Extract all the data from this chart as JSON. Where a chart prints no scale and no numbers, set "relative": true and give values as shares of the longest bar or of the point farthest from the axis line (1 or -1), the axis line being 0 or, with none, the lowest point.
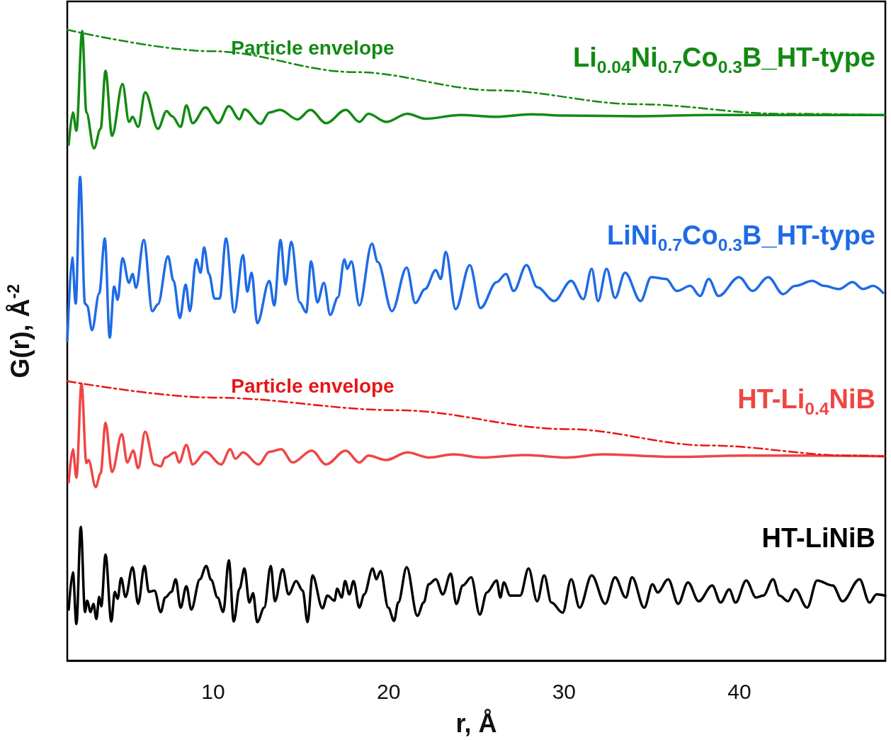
{
  "chart_data": {
    "type": "line",
    "relative": true,
    "xlabel": "r, Å",
    "ylabel": "G(r), Å$^{-2}$",
    "xlim": [
      1.68,
      48.32
    ],
    "xticks": [
      10,
      20,
      30,
      40
    ],
    "grid": false,
    "legend": false,
    "marker": "none",
    "annotations": [
      "Particle envelope",
      "Particle envelope"
    ],
    "series": [
      {
        "name": "Li$_{0.04}$Ni$_{0.7}$Co$_{0.3}$B_HT-type",
        "color": "#138a13",
        "x": [
          1.76,
          2.0,
          2.2,
          2.53,
          2.77,
          3.2,
          3.58,
          3.86,
          4.23,
          4.83,
          5.2,
          5.4,
          5.72,
          6.12,
          6.85,
          7.34,
          7.66,
          8.14,
          8.47,
          8.83,
          9.56,
          10.29,
          10.89,
          11.5,
          11.78,
          12.71,
          13.2,
          13.8,
          14.81,
          15.54,
          16.43,
          17.56,
          18.33,
          18.85,
          19.86,
          21.07,
          22.08,
          24.1,
          26.12,
          28.14,
          30.16,
          34.2,
          38.25,
          42.29,
          48.27
        ],
        "values": [
          0.818,
          0.869,
          0.84,
          0.998,
          0.869,
          0.812,
          0.843,
          0.935,
          0.832,
          0.914,
          0.854,
          0.862,
          0.846,
          0.901,
          0.843,
          0.871,
          0.863,
          0.846,
          0.88,
          0.852,
          0.877,
          0.852,
          0.879,
          0.858,
          0.874,
          0.851,
          0.869,
          0.873,
          0.858,
          0.873,
          0.852,
          0.873,
          0.854,
          0.867,
          0.854,
          0.867,
          0.859,
          0.865,
          0.862,
          0.866,
          0.864,
          0.863,
          0.865,
          0.865,
          0.865
        ]
      },
      {
        "color": "#138a13",
        "line_style": "dashed",
        "x": [
          1.68,
          9.96,
          18.04,
          26.12,
          34.2,
          42.29,
          48.27
        ],
        "values": [
          1.0,
          0.966,
          0.933,
          0.904,
          0.882,
          0.867,
          0.865
        ]
      },
      {
        "name": "LiNi$_{0.7}$Co$_{0.3}$B_HT-type",
        "color": "#1f6be6",
        "x": [
          1.68,
          1.96,
          2.16,
          2.41,
          2.69,
          2.81,
          3.09,
          3.5,
          3.82,
          4.1,
          4.35,
          4.55,
          4.83,
          5.2,
          5.4,
          5.6,
          6.04,
          6.53,
          6.85,
          7.42,
          7.74,
          8.1,
          8.43,
          8.67,
          9.03,
          9.28,
          9.48,
          9.76,
          10.08,
          10.37,
          10.73,
          11.2,
          11.7,
          11.94,
          12.19,
          12.51,
          13.2,
          13.48,
          13.84,
          14.12,
          14.45,
          14.93,
          15.3,
          15.58,
          15.94,
          16.31,
          16.67,
          17.11,
          17.48,
          17.64,
          17.88,
          18.33,
          19.05,
          19.38,
          20.19,
          21.03,
          21.52,
          22.08,
          22.69,
          22.97,
          23.26,
          23.82,
          24.63,
          25.24,
          26.16,
          26.69,
          27.13,
          27.86,
          28.47,
          29.44,
          30.41,
          31.1,
          31.58,
          31.94,
          32.43,
          32.91,
          33.48,
          34.37,
          34.97,
          35.82,
          36.43,
          37.2,
          37.76,
          38.25,
          38.81,
          39.98,
          40.75,
          41.64,
          42.49,
          43.18,
          44.15,
          44.83,
          45.68,
          46.45,
          47.05,
          47.62,
          48.19
        ],
        "values": [
          0.507,
          0.639,
          0.566,
          0.767,
          0.566,
          0.563,
          0.524,
          0.582,
          0.669,
          0.512,
          0.593,
          0.572,
          0.638,
          0.599,
          0.613,
          0.591,
          0.667,
          0.554,
          0.565,
          0.641,
          0.602,
          0.543,
          0.596,
          0.554,
          0.636,
          0.615,
          0.655,
          0.613,
          0.574,
          0.574,
          0.669,
          0.552,
          0.643,
          0.585,
          0.615,
          0.535,
          0.602,
          0.563,
          0.667,
          0.596,
          0.664,
          0.568,
          0.552,
          0.633,
          0.568,
          0.599,
          0.548,
          0.576,
          0.636,
          0.621,
          0.633,
          0.563,
          0.661,
          0.632,
          0.554,
          0.623,
          0.567,
          0.589,
          0.619,
          0.605,
          0.648,
          0.557,
          0.627,
          0.559,
          0.6,
          0.613,
          0.586,
          0.627,
          0.592,
          0.57,
          0.602,
          0.573,
          0.621,
          0.57,
          0.621,
          0.575,
          0.615,
          0.57,
          0.608,
          0.605,
          0.586,
          0.594,
          0.578,
          0.605,
          0.578,
          0.608,
          0.586,
          0.608,
          0.581,
          0.594,
          0.602,
          0.594,
          0.589,
          0.6,
          0.589,
          0.594,
          0.583
        ]
      },
      {
        "name": "HT-Li$_{0.4}$NiB",
        "color": "#f04545",
        "x": [
          1.76,
          2.0,
          2.2,
          2.49,
          2.77,
          2.89,
          3.3,
          3.58,
          3.86,
          4.23,
          4.79,
          5.1,
          5.44,
          5.72,
          6.12,
          6.65,
          7.01,
          7.26,
          7.82,
          8.06,
          8.47,
          8.83,
          9.56,
          10.45,
          10.97,
          11.26,
          11.7,
          12.59,
          13.2,
          13.88,
          14.53,
          15.62,
          16.43,
          17.56,
          18.33,
          18.85,
          19.86,
          21.07,
          22.29,
          23.7,
          25.32,
          27.74,
          30.16,
          32.19,
          36.23,
          40.27,
          44.31,
          48.27
        ],
        "values": [
          0.283,
          0.335,
          0.29,
          0.439,
          0.313,
          0.318,
          0.275,
          0.297,
          0.377,
          0.299,
          0.359,
          0.314,
          0.333,
          0.305,
          0.363,
          0.311,
          0.308,
          0.322,
          0.33,
          0.314,
          0.342,
          0.311,
          0.331,
          0.311,
          0.335,
          0.32,
          0.33,
          0.311,
          0.331,
          0.335,
          0.314,
          0.333,
          0.311,
          0.333,
          0.314,
          0.325,
          0.318,
          0.33,
          0.322,
          0.327,
          0.322,
          0.326,
          0.322,
          0.327,
          0.323,
          0.325,
          0.325,
          0.324
        ]
      },
      {
        "color": "#e81515",
        "line_style": "dashed",
        "x": [
          1.68,
          9.96,
          20.47,
          30.16,
          38.25,
          46.33,
          48.27
        ],
        "values": [
          0.443,
          0.417,
          0.397,
          0.367,
          0.341,
          0.325,
          0.324
        ]
      },
      {
        "name": "HT-LiNiB",
        "color": "#000000",
        "x": [
          1.76,
          2.0,
          2.2,
          2.45,
          2.69,
          2.81,
          3.01,
          3.17,
          3.34,
          3.5,
          3.62,
          3.86,
          4.19,
          4.39,
          4.55,
          4.75,
          5.0,
          5.4,
          5.72,
          6.08,
          6.33,
          6.65,
          7.01,
          7.26,
          7.62,
          7.86,
          8.14,
          8.47,
          8.75,
          9.24,
          9.6,
          9.88,
          10.25,
          10.57,
          10.89,
          11.17,
          11.5,
          11.78,
          12.06,
          12.27,
          12.51,
          12.91,
          13.28,
          13.52,
          13.96,
          14.29,
          14.73,
          15.1,
          15.38,
          15.66,
          16.23,
          16.51,
          16.91,
          17.07,
          17.32,
          17.52,
          17.76,
          18.0,
          18.33,
          18.61,
          19.09,
          19.3,
          19.54,
          19.98,
          20.31,
          20.55,
          21.03,
          21.64,
          22.0,
          22.29,
          22.69,
          23.09,
          23.54,
          23.86,
          24.23,
          24.71,
          25.2,
          25.6,
          26.16,
          26.37,
          26.57,
          26.93,
          27.5,
          27.98,
          28.47,
          28.87,
          29.28,
          29.92,
          30.41,
          30.89,
          31.58,
          32.35,
          32.91,
          33.52,
          33.88,
          34.57,
          35.05,
          35.34,
          35.94,
          36.51,
          37.07,
          37.68,
          38.45,
          38.93,
          39.42,
          39.78,
          40.39,
          40.95,
          41.36,
          41.92,
          42.29,
          42.77,
          43.18,
          43.86,
          44.43,
          45.32,
          45.88,
          46.85,
          47.42,
          47.82,
          48.31
        ],
        "values": [
          0.081,
          0.14,
          0.058,
          0.212,
          0.077,
          0.095,
          0.077,
          0.09,
          0.066,
          0.101,
          0.086,
          0.168,
          0.062,
          0.109,
          0.098,
          0.131,
          0.101,
          0.148,
          0.09,
          0.15,
          0.109,
          0.111,
          0.077,
          0.1,
          0.109,
          0.129,
          0.084,
          0.118,
          0.081,
          0.129,
          0.15,
          0.128,
          0.1,
          0.077,
          0.159,
          0.062,
          0.114,
          0.146,
          0.092,
          0.107,
          0.061,
          0.084,
          0.15,
          0.094,
          0.145,
          0.105,
          0.126,
          0.111,
          0.061,
          0.135,
          0.083,
          0.103,
          0.095,
          0.114,
          0.1,
          0.126,
          0.105,
          0.126,
          0.084,
          0.105,
          0.146,
          0.129,
          0.142,
          0.084,
          0.063,
          0.092,
          0.148,
          0.071,
          0.092,
          0.121,
          0.129,
          0.105,
          0.138,
          0.09,
          0.119,
          0.132,
          0.073,
          0.108,
          0.127,
          0.1,
          0.124,
          0.103,
          0.103,
          0.146,
          0.094,
          0.135,
          0.092,
          0.076,
          0.129,
          0.084,
          0.135,
          0.09,
          0.132,
          0.1,
          0.132,
          0.084,
          0.121,
          0.108,
          0.129,
          0.09,
          0.124,
          0.094,
          0.119,
          0.092,
          0.113,
          0.092,
          0.127,
          0.1,
          0.103,
          0.129,
          0.103,
          0.094,
          0.113,
          0.084,
          0.127,
          0.119,
          0.094,
          0.129,
          0.092,
          0.105,
          0.103
        ]
      }
    ]
  }
}
